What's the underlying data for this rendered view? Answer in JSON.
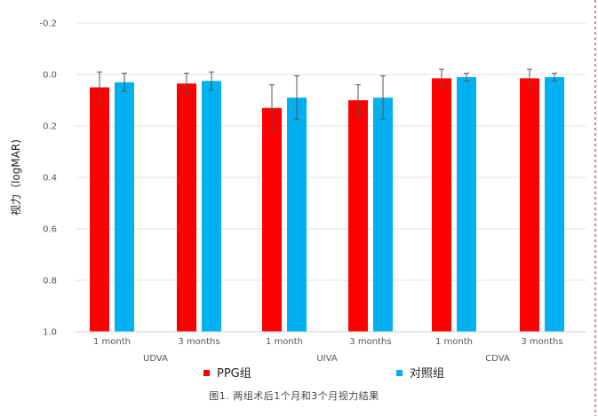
{
  "chart_data": {
    "type": "bar",
    "ylabel": "视力（logMAR)",
    "y_axis_inverted": true,
    "ylim": [
      -0.2,
      1.0
    ],
    "yticks": [
      "-0.2",
      "0.0",
      "0.2",
      "0.4",
      "0.6",
      "0.8",
      "1.0"
    ],
    "y_tick_values": [
      -0.2,
      0.0,
      0.2,
      0.4,
      0.6,
      0.8,
      1.0
    ],
    "categories": [
      "1 month",
      "3 months",
      "1 month",
      "3 months",
      "1 month",
      "3 months"
    ],
    "groups": [
      "UDVA",
      "UIVA",
      "CDVA"
    ],
    "series": [
      {
        "name": "PPG组",
        "color": "#ff0000",
        "values": [
          0.05,
          0.035,
          0.13,
          0.1,
          0.015,
          0.015
        ],
        "errors": [
          0.06,
          0.04,
          0.09,
          0.06,
          0.035,
          0.035
        ]
      },
      {
        "name": "对照组",
        "color": "#00b0f0",
        "values": [
          0.03,
          0.025,
          0.09,
          0.09,
          0.01,
          0.01
        ],
        "errors": [
          0.035,
          0.035,
          0.085,
          0.085,
          0.015,
          0.015
        ]
      }
    ],
    "grid": true,
    "legend_position": "bottom",
    "caption": "图1.  两组术后1个月和3个月视力结果"
  }
}
